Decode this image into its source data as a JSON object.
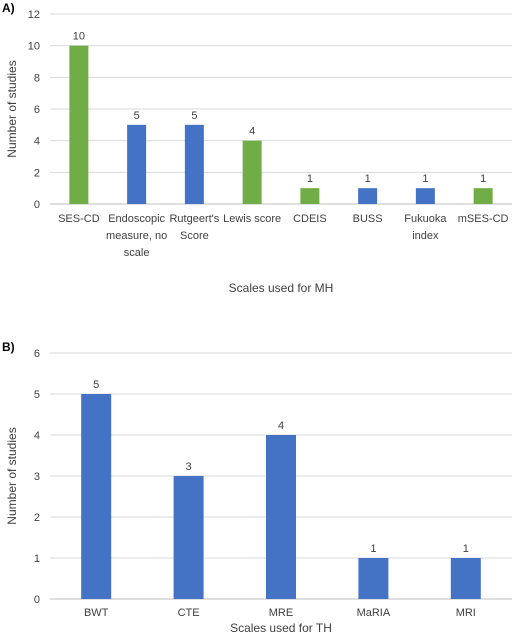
{
  "chart_data": [
    {
      "type": "bar",
      "panel_label": "A)",
      "title": "",
      "xlabel": "Scales used for MH",
      "ylabel": "Number of studies",
      "ylim": [
        0,
        12
      ],
      "yticks": [
        0,
        2,
        4,
        6,
        8,
        10,
        12
      ],
      "grid": true,
      "categories": [
        [
          "SES-CD"
        ],
        [
          "Endoscopic",
          "measure, no",
          "scale"
        ],
        [
          "Rutgeert's",
          "Score"
        ],
        [
          "Lewis score"
        ],
        [
          "CDEIS"
        ],
        [
          "BUSS"
        ],
        [
          "Fukuoka",
          "index"
        ],
        [
          "mSES-CD"
        ]
      ],
      "values": [
        10,
        5,
        5,
        4,
        1,
        1,
        1,
        1
      ],
      "data_labels": [
        "10",
        "5",
        "5",
        "4",
        "1",
        "1",
        "1",
        "1"
      ],
      "colors": [
        "#70ad47",
        "#4472c4",
        "#4472c4",
        "#70ad47",
        "#70ad47",
        "#4472c4",
        "#4472c4",
        "#70ad47"
      ]
    },
    {
      "type": "bar",
      "panel_label": "B)",
      "title": "",
      "xlabel": "Scales used for TH",
      "ylabel": "Number of studies",
      "ylim": [
        0,
        6
      ],
      "yticks": [
        0,
        1,
        2,
        3,
        4,
        5,
        6
      ],
      "grid": true,
      "categories": [
        [
          "BWT"
        ],
        [
          "CTE"
        ],
        [
          "MRE"
        ],
        [
          "MaRIA"
        ],
        [
          "MRI"
        ]
      ],
      "values": [
        5,
        3,
        4,
        1,
        1
      ],
      "data_labels": [
        "5",
        "3",
        "4",
        "1",
        "1"
      ],
      "colors": [
        "#4472c4",
        "#4472c4",
        "#4472c4",
        "#4472c4",
        "#4472c4"
      ]
    }
  ]
}
